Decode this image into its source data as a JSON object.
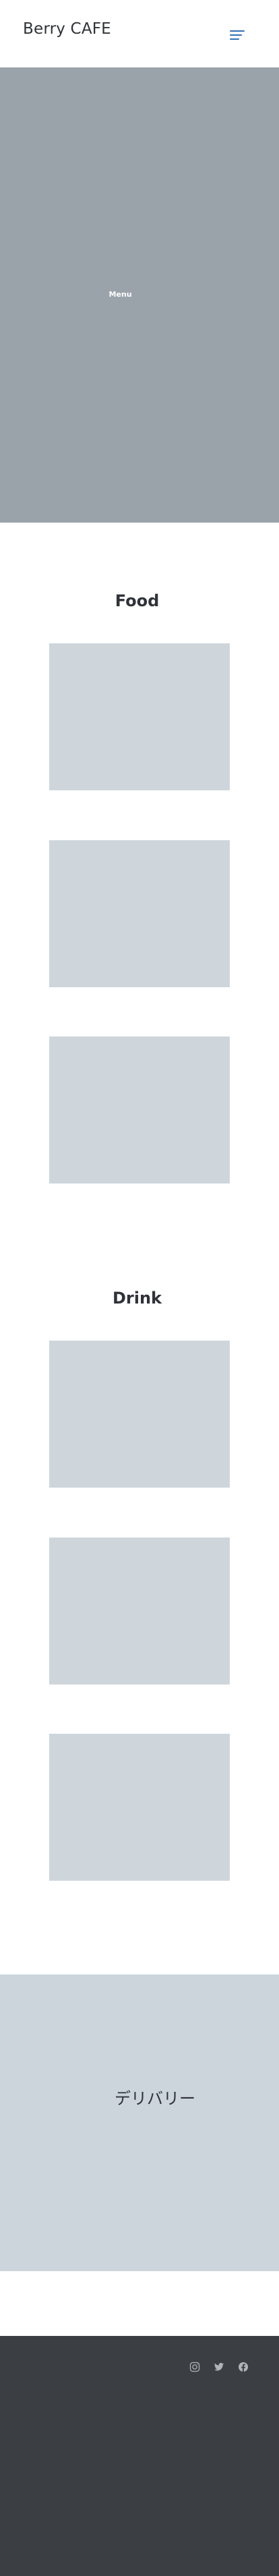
{
  "header": {
    "brand": "Berry CAFE",
    "menu_icon": "hamburger-menu-icon"
  },
  "hero": {
    "title": "Menu"
  },
  "food": {
    "heading": "Food",
    "items": [
      {
        "image": "food-image-placeholder"
      },
      {
        "image": "food-image-placeholder"
      },
      {
        "image": "food-image-placeholder"
      }
    ]
  },
  "drink": {
    "heading": "Drink",
    "items": [
      {
        "image": "drink-image-placeholder"
      },
      {
        "image": "drink-image-placeholder"
      },
      {
        "image": "drink-image-placeholder"
      }
    ]
  },
  "delivery": {
    "title": "デリバリー"
  },
  "footer": {
    "social_icons": [
      "instagram-icon",
      "twitter-icon",
      "facebook-icon"
    ]
  },
  "colors": {
    "accent": "#2f6fb8",
    "hero_bg": "#9ba3aa",
    "placeholder_bg": "#ced6dc",
    "delivery_bg": "#ccd5dc",
    "footer_bg": "#3b3f44",
    "text": "#2f3238"
  }
}
